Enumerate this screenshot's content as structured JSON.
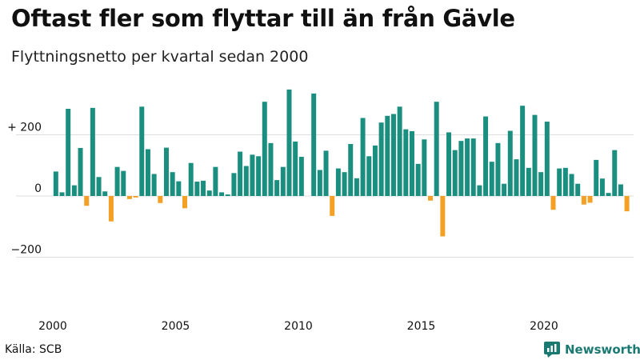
{
  "title": "Oftast fler som flyttar till än från Gävle",
  "subtitle": "Flyttningsnetto per kvartal sedan 2000",
  "source": "Källa: SCB",
  "brand": "Newsworthy",
  "colors": {
    "positive": "#1b8f7f",
    "negative": "#f3a024",
    "brand": "#1a7a72"
  },
  "chart_data": {
    "type": "bar",
    "title": "Oftast fler som flyttar till än från Gävle",
    "subtitle": "Flyttningsnetto per kvartal sedan 2000",
    "xlabel": "",
    "ylabel": "",
    "ylim": [
      -320,
      350
    ],
    "grid": true,
    "y_ticks": [
      {
        "value": 200,
        "label": "+ 200"
      },
      {
        "value": 0,
        "label": "0"
      },
      {
        "value": -200,
        "label": "−200"
      }
    ],
    "x_ticks": [
      {
        "year": 2000,
        "label": "2000"
      },
      {
        "year": 2005,
        "label": "2005"
      },
      {
        "year": 2010,
        "label": "2010"
      },
      {
        "year": 2015,
        "label": "2015"
      },
      {
        "year": 2020,
        "label": "2020"
      }
    ],
    "start_year": 2000,
    "periods_per_year": 4,
    "values": [
      80,
      12,
      285,
      35,
      157,
      -32,
      288,
      62,
      15,
      -83,
      95,
      82,
      -10,
      -5,
      292,
      153,
      72,
      -23,
      158,
      78,
      48,
      -40,
      108,
      47,
      50,
      18,
      95,
      12,
      5,
      75,
      145,
      98,
      135,
      130,
      308,
      173,
      52,
      95,
      348,
      178,
      128,
      0,
      335,
      85,
      148,
      -65,
      90,
      78,
      170,
      58,
      255,
      130,
      165,
      240,
      262,
      268,
      292,
      218,
      212,
      105,
      185,
      -15,
      308,
      -132,
      208,
      150,
      180,
      188,
      188,
      35,
      260,
      112,
      173,
      40,
      213,
      120,
      295,
      92,
      265,
      78,
      243,
      -45,
      90,
      92,
      72,
      40,
      -28,
      -22,
      118,
      57,
      10,
      150,
      38,
      -50
    ]
  }
}
